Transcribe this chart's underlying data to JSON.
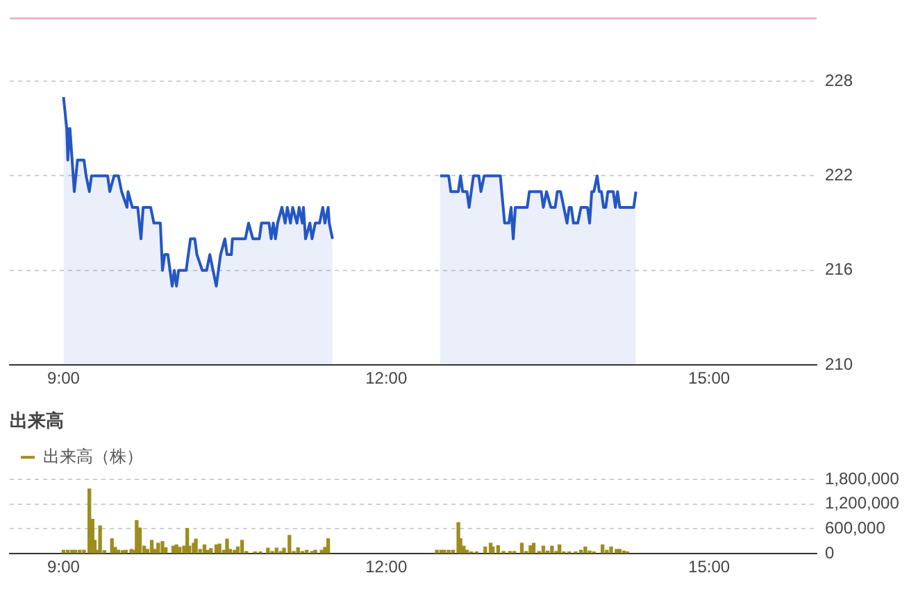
{
  "chart_data": [
    {
      "type": "area",
      "series": [
        {
          "color": "#2456c6",
          "x": [
            9.0,
            9.03,
            9.04,
            9.06,
            9.08,
            9.1,
            9.13,
            9.19,
            9.21,
            9.24,
            9.26,
            9.41,
            9.43,
            9.47,
            9.51,
            9.54,
            9.59,
            9.6,
            9.64,
            9.69,
            9.72,
            9.74,
            9.81,
            9.84,
            9.9,
            9.92,
            9.94,
            9.97,
            10.01,
            10.03,
            10.05,
            10.07,
            10.14,
            10.16,
            10.18,
            10.22,
            10.24,
            10.29,
            10.33,
            10.36,
            10.39,
            10.42,
            10.46,
            10.5,
            10.52,
            10.56,
            10.57,
            10.69,
            10.72,
            10.76,
            10.82,
            10.84,
            10.91,
            10.93,
            10.95,
            10.97,
            10.99,
            11.03,
            11.06,
            11.08,
            11.11,
            11.13,
            11.17,
            11.19,
            11.22,
            11.23,
            11.25,
            11.29,
            11.31,
            11.34,
            11.38,
            11.41,
            11.43,
            11.46,
            11.47,
            11.5,
            12.0,
            12.5,
            12.58,
            12.6,
            12.67,
            12.69,
            12.71,
            12.75,
            12.77,
            12.81,
            12.86,
            12.88,
            12.91,
            13.06,
            13.1,
            13.14,
            13.16,
            13.18,
            13.2,
            13.31,
            13.33,
            13.44,
            13.46,
            13.49,
            13.53,
            13.57,
            13.59,
            13.62,
            13.65,
            13.68,
            13.7,
            13.72,
            13.74,
            13.78,
            13.81,
            13.87,
            13.89,
            13.91,
            13.93,
            13.96,
            13.98,
            14.0,
            14.02,
            14.04,
            14.06,
            14.11,
            14.13,
            14.15,
            14.17,
            14.3,
            14.32
          ],
          "values": [
            227,
            225,
            223,
            225,
            223,
            221,
            223,
            223,
            222,
            221,
            222,
            222,
            221,
            222,
            222,
            221,
            220,
            221,
            220,
            220,
            218,
            220,
            220,
            219,
            219,
            216,
            217,
            217,
            215,
            216,
            215,
            216,
            216,
            217,
            218,
            218,
            217,
            216,
            216,
            217,
            216,
            215,
            217,
            218,
            217,
            217,
            218,
            218,
            219,
            218,
            218,
            219,
            219,
            218,
            219,
            218,
            219,
            220,
            219,
            220,
            219,
            220,
            219,
            220,
            219,
            220,
            218,
            219,
            218,
            219,
            219,
            220,
            219,
            220,
            219,
            218,
            null,
            222,
            222,
            221,
            221,
            222,
            221,
            221,
            220,
            222,
            222,
            221,
            222,
            222,
            219,
            219,
            220,
            218,
            220,
            220,
            221,
            221,
            220,
            221,
            220,
            220,
            221,
            221,
            220,
            219,
            220,
            220,
            219,
            219,
            220,
            220,
            219,
            221,
            221,
            222,
            221,
            221,
            220,
            220,
            221,
            221,
            220,
            221,
            220,
            220,
            221
          ]
        }
      ],
      "xlim": [
        8.5,
        16
      ],
      "xticks": [
        {
          "value": 9,
          "label": "9:00"
        },
        {
          "value": 12,
          "label": "12:00"
        },
        {
          "value": 15,
          "label": "15:00"
        }
      ],
      "ylim": [
        210,
        232
      ],
      "yticks": [
        210,
        216,
        222,
        228
      ],
      "grid": "y",
      "ref_lines": [
        {
          "axis": "y",
          "value": 232,
          "color": "#f4b3c6"
        }
      ]
    },
    {
      "type": "bar",
      "title": "出来高",
      "legend": "top left",
      "series": [
        {
          "name": "出来高（株）",
          "color": "#9c8d1e",
          "x": [
            9.0,
            9.04,
            9.08,
            9.11,
            9.15,
            9.19,
            9.23,
            9.24,
            9.27,
            9.29,
            9.32,
            9.34,
            9.38,
            9.45,
            9.48,
            9.51,
            9.55,
            9.58,
            9.63,
            9.65,
            9.68,
            9.71,
            9.75,
            9.78,
            9.82,
            9.85,
            9.88,
            9.92,
            9.95,
            10.02,
            10.05,
            10.08,
            10.12,
            10.15,
            10.17,
            10.21,
            10.23,
            10.27,
            10.31,
            10.34,
            10.37,
            10.42,
            10.45,
            10.49,
            10.52,
            10.55,
            10.59,
            10.62,
            10.66,
            10.7,
            10.78,
            10.83,
            10.9,
            10.94,
            10.98,
            11.02,
            11.05,
            11.1,
            11.14,
            11.18,
            11.22,
            11.26,
            11.31,
            11.34,
            11.4,
            11.43,
            11.46,
            12.47,
            12.51,
            12.54,
            12.58,
            12.62,
            12.66,
            12.67,
            12.69,
            12.72,
            12.75,
            12.79,
            12.84,
            12.92,
            12.97,
            12.99,
            13.04,
            13.09,
            13.15,
            13.19,
            13.26,
            13.3,
            13.34,
            13.37,
            13.42,
            13.46,
            13.5,
            13.54,
            13.58,
            13.61,
            13.65,
            13.7,
            13.76,
            13.81,
            13.85,
            13.89,
            13.93,
            14.01,
            14.05,
            14.09,
            14.14,
            14.17,
            14.21,
            14.24
          ],
          "values": [
            80000,
            80000,
            80000,
            80000,
            80000,
            80000,
            null,
            1570000,
            830000,
            320000,
            80000,
            670000,
            70000,
            360000,
            150000,
            80000,
            70000,
            80000,
            100000,
            80000,
            800000,
            620000,
            180000,
            100000,
            320000,
            100000,
            250000,
            290000,
            140000,
            180000,
            210000,
            150000,
            180000,
            610000,
            180000,
            250000,
            350000,
            100000,
            210000,
            80000,
            120000,
            210000,
            230000,
            80000,
            350000,
            100000,
            80000,
            160000,
            320000,
            50000,
            40000,
            40000,
            130000,
            50000,
            130000,
            50000,
            130000,
            440000,
            50000,
            140000,
            50000,
            80000,
            50000,
            80000,
            80000,
            150000,
            360000,
            80000,
            80000,
            80000,
            80000,
            80000,
            null,
            750000,
            360000,
            180000,
            80000,
            40000,
            40000,
            160000,
            250000,
            160000,
            190000,
            50000,
            50000,
            50000,
            250000,
            50000,
            190000,
            250000,
            50000,
            180000,
            60000,
            180000,
            50000,
            210000,
            40000,
            40000,
            40000,
            80000,
            160000,
            60000,
            40000,
            210000,
            80000,
            160000,
            100000,
            100000,
            60000,
            40000
          ]
        }
      ],
      "xlim": [
        8.5,
        16
      ],
      "xticks": [
        {
          "value": 9,
          "label": "9:00"
        },
        {
          "value": 12,
          "label": "12:00"
        },
        {
          "value": 15,
          "label": "15:00"
        }
      ],
      "ylim": [
        0,
        1800000
      ],
      "yticks": [
        0,
        {
          "value": 600000,
          "label": "600,000"
        },
        {
          "value": 1200000,
          "label": "1,200,000"
        },
        {
          "value": 1800000,
          "label": "1,800,000"
        }
      ],
      "grid": "y"
    }
  ]
}
